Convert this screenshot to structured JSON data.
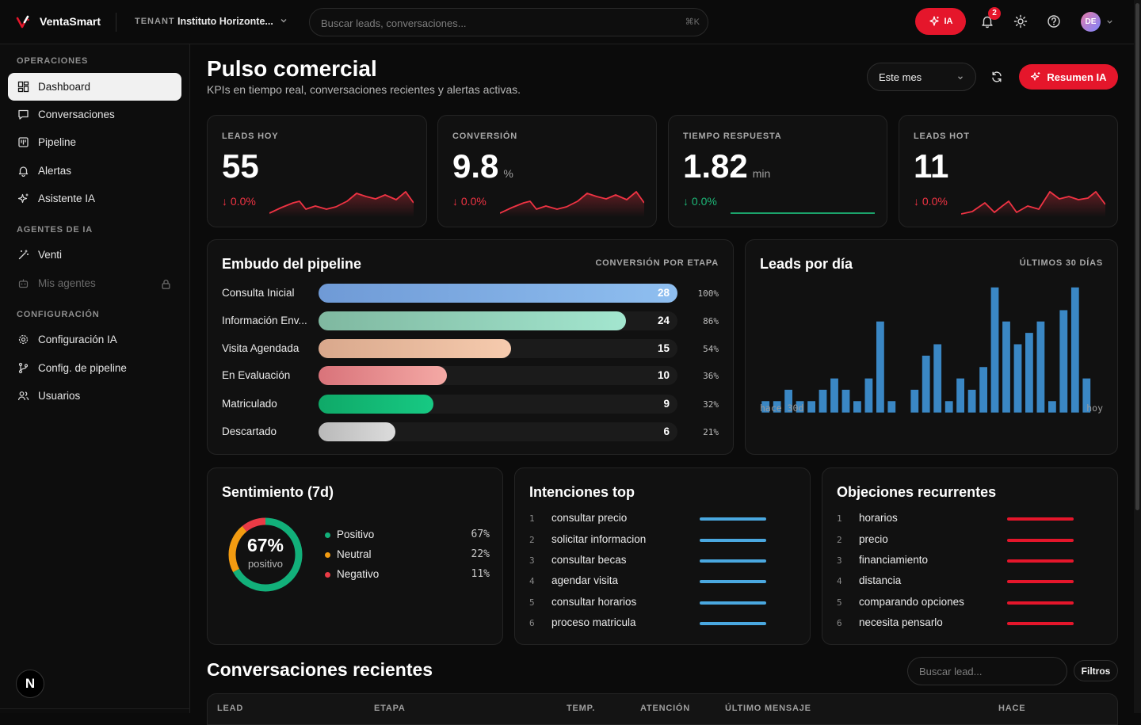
{
  "topbar": {
    "brand": "VentaSmart",
    "tenant_label": "TENANT",
    "tenant_name": "Instituto Horizonte...",
    "search_placeholder": "Buscar leads, conversaciones...",
    "search_shortcut": "⌘K",
    "ia_label": "IA",
    "notifications_count": "2",
    "avatar_initials": "DE"
  },
  "sidebar": {
    "sections": [
      {
        "title": "OPERACIONES",
        "items": [
          {
            "label": "Dashboard",
            "icon": "dashboard-icon",
            "active": true
          },
          {
            "label": "Conversaciones",
            "icon": "message-icon"
          },
          {
            "label": "Pipeline",
            "icon": "kanban-icon"
          },
          {
            "label": "Alertas",
            "icon": "bell-icon"
          },
          {
            "label": "Asistente IA",
            "icon": "sparkles-icon"
          }
        ]
      },
      {
        "title": "AGENTES DE IA",
        "items": [
          {
            "label": "Venti",
            "icon": "wand-icon"
          },
          {
            "label": "Mis agentes",
            "icon": "bot-icon",
            "disabled": true,
            "locked": true
          }
        ]
      },
      {
        "title": "CONFIGURACIÓN",
        "items": [
          {
            "label": "Configuración IA",
            "icon": "gear-icon"
          },
          {
            "label": "Config. de pipeline",
            "icon": "git-branch-icon"
          },
          {
            "label": "Usuarios",
            "icon": "users-icon"
          }
        ]
      }
    ],
    "footer_initial": "N"
  },
  "header": {
    "title": "Pulso comercial",
    "subtitle": "KPIs en tiempo real, conversaciones recientes y alertas activas.",
    "period": "Este mes",
    "summary_button": "Resumen IA"
  },
  "kpis": [
    {
      "label": "LEADS HOY",
      "value": "55",
      "unit": "",
      "delta": "↓ 0.0%",
      "trend": "red"
    },
    {
      "label": "CONVERSIÓN",
      "value": "9.8",
      "unit": "%",
      "delta": "↓ 0.0%",
      "trend": "red"
    },
    {
      "label": "TIEMPO RESPUESTA",
      "value": "1.82",
      "unit": "min",
      "delta": "↓ 0.0%",
      "trend": "green"
    },
    {
      "label": "LEADS HOT",
      "value": "11",
      "unit": "",
      "delta": "↓ 0.0%",
      "trend": "red"
    }
  ],
  "funnel": {
    "title": "Embudo del pipeline",
    "meta": "CONVERSIÓN POR ETAPA",
    "stages": [
      {
        "label": "Consulta Inicial",
        "count": "28",
        "pct": "100%",
        "fraction": 1.0,
        "color_from": "#6f9ad6",
        "color_to": "#8fbff0"
      },
      {
        "label": "Información Enviada",
        "label_display": "Información Env...",
        "count": "24",
        "pct": "86%",
        "fraction": 0.857,
        "color_from": "#7fb8a0",
        "color_to": "#a3e6cf"
      },
      {
        "label": "Visita Agendada",
        "count": "15",
        "pct": "54%",
        "fraction": 0.536,
        "color_from": "#d9a88c",
        "color_to": "#f6cbae"
      },
      {
        "label": "En Evaluación",
        "count": "10",
        "pct": "36%",
        "fraction": 0.357,
        "color_from": "#d9737a",
        "color_to": "#f4a9a5"
      },
      {
        "label": "Matriculado",
        "count": "9",
        "pct": "32%",
        "fraction": 0.321,
        "color_from": "#0fa968",
        "color_to": "#17c983"
      },
      {
        "label": "Descartado",
        "count": "6",
        "pct": "21%",
        "fraction": 0.214,
        "color_from": "#b9b9b9",
        "color_to": "#dcdcdc"
      }
    ]
  },
  "leads_by_day": {
    "title": "Leads por día",
    "meta": "ÚLTIMOS 30 DÍAS",
    "x_start": "hace 30d",
    "x_end": "hoy"
  },
  "chart_data": {
    "type": "bar",
    "title": "Leads por día",
    "x": [
      "hace 30d",
      "",
      "",
      "",
      "",
      "",
      "",
      "",
      "",
      "",
      "",
      "",
      "",
      "",
      "",
      "",
      "",
      "",
      "",
      "",
      "",
      "",
      "",
      "",
      "",
      "",
      "",
      "",
      "",
      "hoy"
    ],
    "values": [
      1,
      1,
      2,
      1,
      1,
      2,
      3,
      2,
      1,
      3,
      8,
      1,
      0,
      2,
      5,
      6,
      1,
      3,
      2,
      4,
      11,
      8,
      6,
      7,
      8,
      1,
      9,
      11,
      3,
      0
    ],
    "color": "#3a87c4",
    "grid": false
  },
  "sentiment": {
    "title": "Sentimiento (7d)",
    "center_value": "67%",
    "center_label": "positivo",
    "items": [
      {
        "name": "Positivo",
        "pct": "67%",
        "value": 67,
        "color": "#12b07a"
      },
      {
        "name": "Neutral",
        "pct": "22%",
        "value": 22,
        "color": "#f29b11"
      },
      {
        "name": "Negativo",
        "pct": "11%",
        "value": 11,
        "color": "#ea3b46"
      }
    ]
  },
  "intents": {
    "title": "Intenciones top",
    "color": "#4aa8e0",
    "items": [
      "consultar precio",
      "solicitar informacion",
      "consultar becas",
      "agendar visita",
      "consultar horarios",
      "proceso matricula"
    ]
  },
  "objections": {
    "title": "Objeciones recurrentes",
    "color": "#e5162b",
    "items": [
      "horarios",
      "precio",
      "financiamiento",
      "distancia",
      "comparando opciones",
      "necesita pensarlo"
    ]
  },
  "recent": {
    "title": "Conversaciones recientes",
    "search_placeholder": "Buscar lead...",
    "filters_label": "Filtros",
    "columns": [
      "LEAD",
      "ETAPA",
      "TEMP.",
      "ATENCIÓN",
      "ÚLTIMO MENSAJE",
      "HACE"
    ]
  },
  "colors": {
    "accent": "#e5162b",
    "positive": "#1db878",
    "negative": "#ef3343",
    "card_bg": "#111111"
  }
}
